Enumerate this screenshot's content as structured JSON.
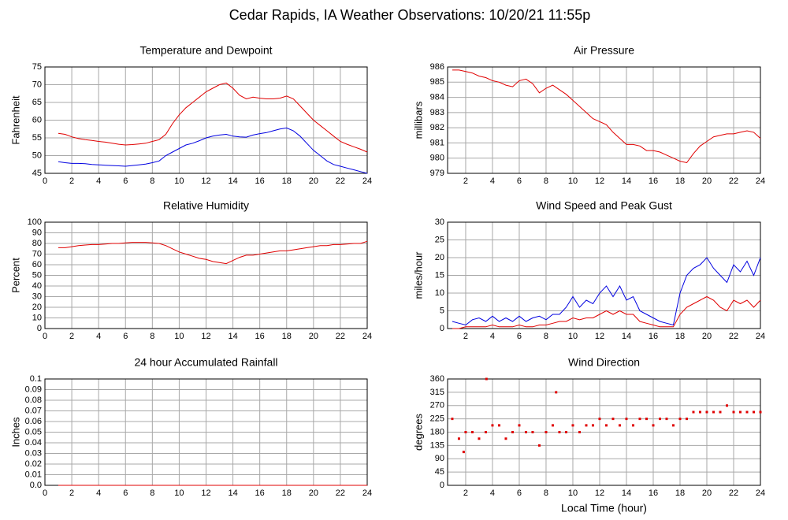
{
  "title": "Cedar Rapids, IA Weather Observations: 10/20/21 11:55p",
  "chart_data": [
    {
      "type": "line",
      "title": "Temperature and Dewpoint",
      "ylabel": "Fahrenheit",
      "x": [
        1,
        1.5,
        2,
        2.5,
        3,
        3.5,
        4,
        4.5,
        5,
        5.5,
        6,
        6.5,
        7,
        7.5,
        8,
        8.5,
        9,
        9.5,
        10,
        10.5,
        11,
        11.5,
        12,
        12.5,
        13,
        13.5,
        14,
        14.5,
        15,
        15.5,
        16,
        16.5,
        17,
        17.5,
        18,
        18.5,
        19,
        19.5,
        20,
        20.5,
        21,
        21.5,
        22,
        22.5,
        23,
        23.5,
        24
      ],
      "series": [
        {
          "color": "#e00000",
          "values": [
            56.3,
            56,
            55.3,
            54.8,
            54.5,
            54.3,
            54,
            53.8,
            53.5,
            53.2,
            53,
            53.1,
            53.3,
            53.5,
            54,
            54.5,
            56,
            59,
            61.5,
            63.5,
            65,
            66.5,
            68,
            69,
            70,
            70.5,
            69,
            67,
            66,
            66.5,
            66.2,
            66,
            66,
            66.2,
            66.8,
            66,
            64,
            62,
            60,
            58.5,
            57,
            55.5,
            54,
            53.2,
            52.5,
            51.8,
            51
          ]
        },
        {
          "color": "#0000e0",
          "values": [
            48.3,
            48,
            47.8,
            47.8,
            47.7,
            47.5,
            47.4,
            47.3,
            47.2,
            47.1,
            47,
            47.2,
            47.4,
            47.6,
            48,
            48.5,
            50,
            51,
            52,
            53,
            53.5,
            54.2,
            55,
            55.5,
            55.8,
            56,
            55.5,
            55.3,
            55.2,
            55.8,
            56.2,
            56.5,
            57,
            57.5,
            57.8,
            57,
            55.5,
            53.5,
            51.5,
            50,
            48.5,
            47.5,
            47,
            46.5,
            46,
            45.5,
            45
          ]
        }
      ],
      "xlim": [
        0,
        24
      ],
      "xticks": [
        0,
        2,
        4,
        6,
        8,
        10,
        12,
        14,
        16,
        18,
        20,
        22,
        24
      ],
      "ylim": [
        45,
        75
      ],
      "yticks": [
        45,
        50,
        55,
        60,
        65,
        70,
        75
      ],
      "grid": true
    },
    {
      "type": "line",
      "title": "Air Pressure",
      "ylabel": "millibars",
      "x": [
        1,
        1.5,
        2,
        2.5,
        3,
        3.5,
        4,
        4.5,
        5,
        5.5,
        6,
        6.5,
        7,
        7.5,
        8,
        8.5,
        9,
        9.5,
        10,
        10.5,
        11,
        11.5,
        12,
        12.5,
        13,
        13.5,
        14,
        14.5,
        15,
        15.5,
        16,
        16.5,
        17,
        17.5,
        18,
        18.5,
        19,
        19.5,
        20,
        20.5,
        21,
        21.5,
        22,
        22.5,
        23,
        23.5,
        24
      ],
      "series": [
        {
          "color": "#e00000",
          "values": [
            985.8,
            985.8,
            985.7,
            985.6,
            985.4,
            985.3,
            985.1,
            985,
            984.8,
            984.7,
            985.1,
            985.2,
            984.9,
            984.3,
            984.6,
            984.8,
            984.5,
            984.2,
            983.8,
            983.4,
            983,
            982.6,
            982.4,
            982.2,
            981.7,
            981.3,
            980.9,
            980.9,
            980.8,
            980.5,
            980.5,
            980.4,
            980.2,
            980,
            979.8,
            979.7,
            980.3,
            980.8,
            981.1,
            981.4,
            981.5,
            981.6,
            981.6,
            981.7,
            981.8,
            981.7,
            981.3
          ]
        }
      ],
      "xlim": [
        0.65,
        24
      ],
      "xticks": [
        2,
        4,
        6,
        8,
        10,
        12,
        14,
        16,
        18,
        20,
        22,
        24
      ],
      "ylim": [
        979,
        986
      ],
      "yticks": [
        979,
        980,
        981,
        982,
        983,
        984,
        985,
        986
      ],
      "grid": true
    },
    {
      "type": "line",
      "title": "Relative Humidity",
      "ylabel": "Percent",
      "x": [
        1,
        1.5,
        2,
        2.5,
        3,
        3.5,
        4,
        4.5,
        5,
        5.5,
        6,
        6.5,
        7,
        7.5,
        8,
        8.5,
        9,
        9.5,
        10,
        10.5,
        11,
        11.5,
        12,
        12.5,
        13,
        13.5,
        14,
        14.5,
        15,
        15.5,
        16,
        16.5,
        17,
        17.5,
        18,
        18.5,
        19,
        19.5,
        20,
        20.5,
        21,
        21.5,
        22,
        22.5,
        23,
        23.5,
        24
      ],
      "series": [
        {
          "color": "#e00000",
          "values": [
            76,
            76,
            77,
            78,
            78.5,
            79,
            79,
            79.5,
            80,
            80,
            80.5,
            81,
            81,
            81,
            80.5,
            80,
            78,
            75,
            72,
            70,
            68,
            66,
            65,
            63,
            62,
            61,
            64,
            67,
            69,
            69,
            70,
            71,
            72,
            73,
            73,
            74,
            75,
            76,
            77,
            78,
            78,
            79,
            79,
            79.5,
            80,
            80,
            82
          ]
        }
      ],
      "xlim": [
        0,
        24
      ],
      "xticks": [
        0,
        2,
        4,
        6,
        8,
        10,
        12,
        14,
        16,
        18,
        20,
        22,
        24
      ],
      "ylim": [
        0,
        100
      ],
      "yticks": [
        0,
        10,
        20,
        30,
        40,
        50,
        60,
        70,
        80,
        90,
        100
      ],
      "grid": true
    },
    {
      "type": "line",
      "title": "Wind Speed and Peak Gust",
      "ylabel": "miles/hour",
      "x": [
        1,
        1.5,
        2,
        2.5,
        3,
        3.5,
        4,
        4.5,
        5,
        5.5,
        6,
        6.5,
        7,
        7.5,
        8,
        8.5,
        9,
        9.5,
        10,
        10.5,
        11,
        11.5,
        12,
        12.5,
        13,
        13.5,
        14,
        14.5,
        15,
        15.5,
        16,
        16.5,
        17,
        17.5,
        18,
        18.5,
        19,
        19.5,
        20,
        20.5,
        21,
        21.5,
        22,
        22.5,
        23,
        23.5,
        24
      ],
      "series": [
        {
          "color": "#0000e0",
          "values": [
            2,
            1.5,
            1,
            2.5,
            3,
            2,
            3.5,
            2,
            3,
            2,
            3.5,
            2,
            3,
            3.5,
            2.5,
            4,
            4,
            6,
            9,
            6,
            8,
            7,
            10,
            12,
            9,
            12,
            8,
            9,
            5,
            4,
            3,
            2,
            1.5,
            1,
            10,
            15,
            17,
            18,
            20,
            17,
            15,
            13,
            18,
            16,
            19,
            15,
            20
          ]
        },
        {
          "color": "#e00000",
          "values": [
            0,
            0,
            0.5,
            0.5,
            0.5,
            0.5,
            1,
            0.5,
            0.5,
            0.5,
            1,
            0.5,
            0.5,
            1,
            1,
            1.5,
            2,
            2,
            3,
            2.5,
            3,
            3,
            4,
            5,
            4,
            5,
            4,
            4,
            2,
            1.5,
            1,
            0.5,
            0.5,
            0.5,
            4,
            6,
            7,
            8,
            9,
            8,
            6,
            5,
            8,
            7,
            8,
            6,
            8
          ]
        }
      ],
      "xlim": [
        0.65,
        24
      ],
      "xticks": [
        2,
        4,
        6,
        8,
        10,
        12,
        14,
        16,
        18,
        20,
        22,
        24
      ],
      "ylim": [
        0,
        30
      ],
      "yticks": [
        0,
        5,
        10,
        15,
        20,
        25,
        30
      ],
      "grid": true
    },
    {
      "type": "line",
      "title": "24 hour Accumulated Rainfall",
      "ylabel": "Inches",
      "x": [
        1,
        2,
        4,
        6,
        8,
        10,
        12,
        14,
        16,
        18,
        20,
        22,
        24
      ],
      "series": [
        {
          "color": "#e00000",
          "values": [
            0,
            0,
            0,
            0,
            0,
            0,
            0,
            0,
            0,
            0,
            0,
            0,
            0
          ]
        }
      ],
      "xlim": [
        0,
        24
      ],
      "xticks": [
        0,
        2,
        4,
        6,
        8,
        10,
        12,
        14,
        16,
        18,
        20,
        22,
        24
      ],
      "ylim": [
        0,
        0.1
      ],
      "yticks": [
        {
          "value": 0,
          "label": "0.0"
        },
        0.01,
        0.02,
        0.03,
        0.04,
        0.05,
        0.06,
        0.07,
        0.08,
        0.09,
        0.1
      ],
      "grid": true
    },
    {
      "type": "scatter",
      "title": "Wind Direction",
      "ylabel": "degrees",
      "xlabel": "Local Time (hour)",
      "x": [
        1,
        1.5,
        1.85,
        2,
        2.5,
        3,
        3.5,
        3.55,
        4,
        4.5,
        5,
        5.5,
        6,
        6.5,
        7,
        7.5,
        8,
        8.5,
        8.75,
        9,
        9.5,
        10,
        10.5,
        11,
        11.5,
        12,
        12.5,
        13,
        13.5,
        14,
        14.5,
        15,
        15.5,
        16,
        16.5,
        17,
        17.5,
        18,
        18.5,
        19,
        19.5,
        20,
        20.5,
        21,
        21.5,
        22,
        22.5,
        23,
        23.5,
        24
      ],
      "series": [
        {
          "color": "#e00000",
          "values": [
            225,
            158,
            113,
            180,
            180,
            158,
            180,
            360,
            203,
            203,
            158,
            180,
            203,
            180,
            180,
            135,
            180,
            203,
            315,
            180,
            180,
            203,
            180,
            203,
            203,
            225,
            203,
            225,
            203,
            225,
            203,
            225,
            225,
            203,
            225,
            225,
            203,
            225,
            225,
            248,
            248,
            248,
            248,
            248,
            270,
            248,
            248,
            248,
            248,
            248
          ]
        }
      ],
      "xlim": [
        0.65,
        24
      ],
      "xticks": [
        2,
        4,
        6,
        8,
        10,
        12,
        14,
        16,
        18,
        20,
        22,
        24
      ],
      "ylim": [
        0,
        360
      ],
      "yticks": [
        0,
        45,
        90,
        135,
        180,
        225,
        270,
        315,
        360
      ],
      "grid": true
    }
  ]
}
